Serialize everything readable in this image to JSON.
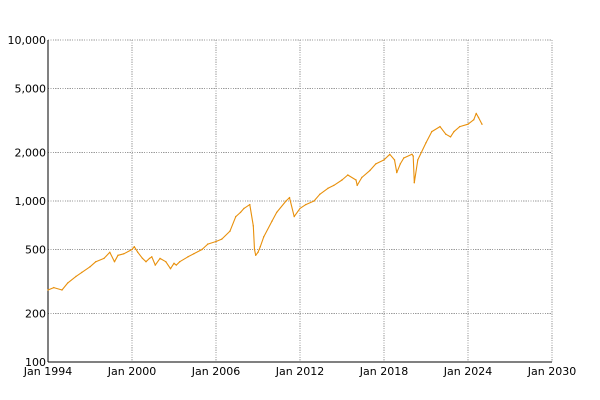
{
  "chart_data": {
    "type": "line",
    "title": "",
    "xlabel": "",
    "ylabel": "",
    "yscale": "log",
    "ylim": [
      100,
      10000
    ],
    "xlim": [
      "Jan 1994",
      "Jan 2030"
    ],
    "grid": true,
    "legend": "none",
    "colors": {
      "line": "#e8900c",
      "grid": "#999999"
    },
    "y_ticks": [
      {
        "value": 100,
        "label": "100"
      },
      {
        "value": 200,
        "label": "200"
      },
      {
        "value": 500,
        "label": "500"
      },
      {
        "value": 1000,
        "label": "1,000"
      },
      {
        "value": 2000,
        "label": "2,000"
      },
      {
        "value": 5000,
        "label": "5,000"
      },
      {
        "value": 10000,
        "label": "10,000"
      }
    ],
    "x_ticks": [
      {
        "value": "Jan 1994",
        "label": "Jan 1994"
      },
      {
        "value": "Jan 2000",
        "label": "Jan 2000"
      },
      {
        "value": "Jan 2006",
        "label": "Jan 2006"
      },
      {
        "value": "Jan 2012",
        "label": "Jan 2012"
      },
      {
        "value": "Jan 2018",
        "label": "Jan 2018"
      },
      {
        "value": "Jan 2024",
        "label": "Jan 2024"
      },
      {
        "value": "Jan 2030",
        "label": "Jan 2030"
      }
    ],
    "series": [
      {
        "x": [
          "Jan 1994",
          "Jun 1994",
          "Jan 1995",
          "Jun 1995",
          "Jan 1996",
          "Jun 1996",
          "Jan 1997",
          "Jun 1997",
          "Jan 1998",
          "Jun 1998",
          "Oct 1998",
          "Jan 1999",
          "Jun 1999",
          "Jan 2000",
          "Mar 2000",
          "Jun 2000",
          "Oct 2000",
          "Jan 2001",
          "Apr 2001",
          "Jun 2001",
          "Sep 2001",
          "Jan 2002",
          "Jun 2002",
          "Oct 2002",
          "Jan 2003",
          "Mar 2003",
          "Jun 2003",
          "Jan 2004",
          "Jun 2004",
          "Jan 2005",
          "Jun 2005",
          "Jan 2006",
          "Jun 2006",
          "Jan 2007",
          "Jun 2007",
          "Oct 2007",
          "Jan 2008",
          "Jun 2008",
          "Sep 2008",
          "Oct 2008",
          "Nov 2008",
          "Jan 2009",
          "Mar 2009",
          "Jun 2009",
          "Jan 2010",
          "May 2010",
          "Jan 2011",
          "Apr 2011",
          "Aug 2011",
          "Jan 2012",
          "Jun 2012",
          "Jan 2013",
          "Jun 2013",
          "Jan 2014",
          "Jun 2014",
          "Jan 2015",
          "Jun 2015",
          "Jan 2016",
          "Feb 2016",
          "Jun 2016",
          "Jan 2017",
          "Jun 2017",
          "Jan 2018",
          "Jun 2018",
          "Oct 2018",
          "Dec 2018",
          "Mar 2019",
          "Jun 2019",
          "Jan 2020",
          "Feb 2020",
          "Mar 2020",
          "Jun 2020",
          "Jan 2021",
          "Jun 2021",
          "Jan 2022",
          "Jun 2022",
          "Oct 2022",
          "Jan 2023",
          "Jun 2023",
          "Jan 2024",
          "Jun 2024",
          "Aug 2024",
          "Oct 2024",
          "Jan 2025"
        ],
        "values": [
          280,
          290,
          280,
          310,
          340,
          360,
          390,
          420,
          440,
          480,
          420,
          460,
          470,
          500,
          520,
          480,
          440,
          420,
          440,
          450,
          400,
          440,
          420,
          380,
          410,
          400,
          420,
          450,
          470,
          500,
          540,
          560,
          580,
          650,
          800,
          850,
          900,
          950,
          700,
          500,
          460,
          480,
          520,
          600,
          750,
          850,
          1000,
          1050,
          800,
          900,
          950,
          1000,
          1100,
          1200,
          1250,
          1350,
          1450,
          1350,
          1250,
          1400,
          1550,
          1700,
          1800,
          1950,
          1800,
          1500,
          1700,
          1850,
          1950,
          1900,
          1300,
          1800,
          2300,
          2700,
          2900,
          2600,
          2500,
          2700,
          2900,
          3000,
          3200,
          3500,
          3300,
          3000
        ]
      }
    ]
  }
}
